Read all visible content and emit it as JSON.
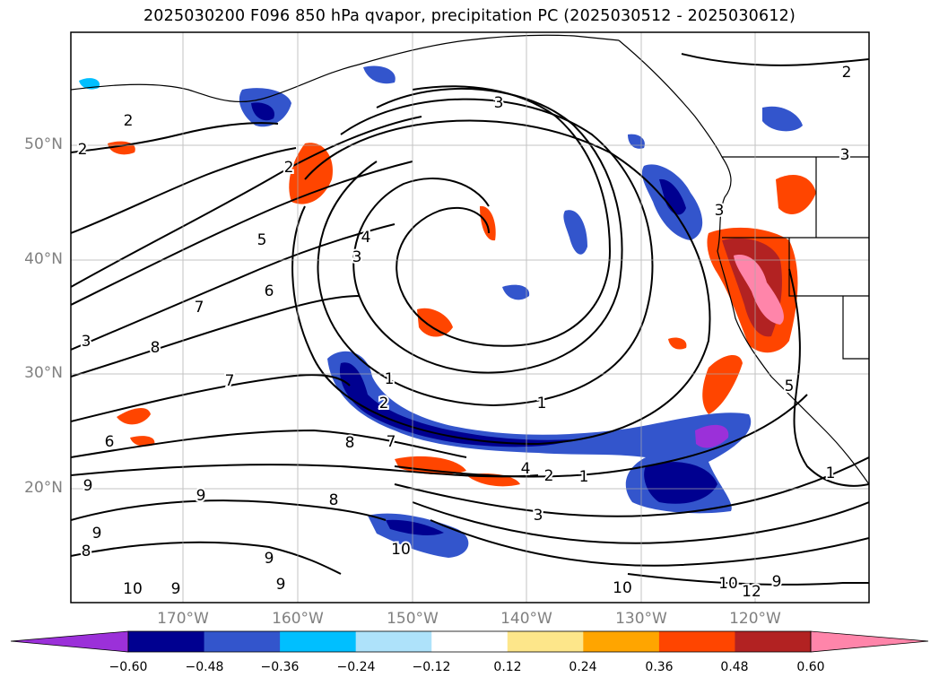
{
  "title": "2025030200 F096 850 hPa qvapor, precipitation PC (2025030512 - 2025030612)",
  "axes": {
    "lat_labels": [
      "50°N",
      "40°N",
      "30°N",
      "20°N"
    ],
    "lon_labels": [
      "170°W",
      "160°W",
      "150°W",
      "140°W",
      "130°W",
      "120°W"
    ]
  },
  "colorbar": {
    "ticks": [
      "−0.60",
      "−0.48",
      "−0.36",
      "−0.24",
      "−0.12",
      "0.12",
      "0.24",
      "0.36",
      "0.48",
      "0.60"
    ],
    "colors": [
      "#9b30d9",
      "#000090",
      "#3355cc",
      "#00bfff",
      "#aee2fa",
      "#ffffff",
      "#fde68a",
      "#ffa500",
      "#ff4500",
      "#b22222",
      "#ff85aa"
    ]
  },
  "contour_labels": [
    {
      "text": "2"
    },
    {
      "text": "2"
    },
    {
      "text": "2"
    },
    {
      "text": "3"
    },
    {
      "text": "2"
    },
    {
      "text": "3"
    },
    {
      "text": "3"
    },
    {
      "text": "4"
    },
    {
      "text": "3"
    },
    {
      "text": "5"
    },
    {
      "text": "6"
    },
    {
      "text": "7"
    },
    {
      "text": "8"
    },
    {
      "text": "3"
    },
    {
      "text": "7"
    },
    {
      "text": "6"
    },
    {
      "text": "1"
    },
    {
      "text": "2"
    },
    {
      "text": "1"
    },
    {
      "text": "8"
    },
    {
      "text": "7"
    },
    {
      "text": "4"
    },
    {
      "text": "2"
    },
    {
      "text": "1"
    },
    {
      "text": "3"
    },
    {
      "text": "9"
    },
    {
      "text": "9"
    },
    {
      "text": "8"
    },
    {
      "text": "9"
    },
    {
      "text": "10"
    },
    {
      "text": "9"
    },
    {
      "text": "10"
    },
    {
      "text": "9"
    },
    {
      "text": "10"
    },
    {
      "text": "10"
    },
    {
      "text": "12"
    },
    {
      "text": "9"
    },
    {
      "text": "5"
    },
    {
      "text": "1"
    },
    {
      "text": "8"
    },
    {
      "text": "9"
    }
  ]
}
